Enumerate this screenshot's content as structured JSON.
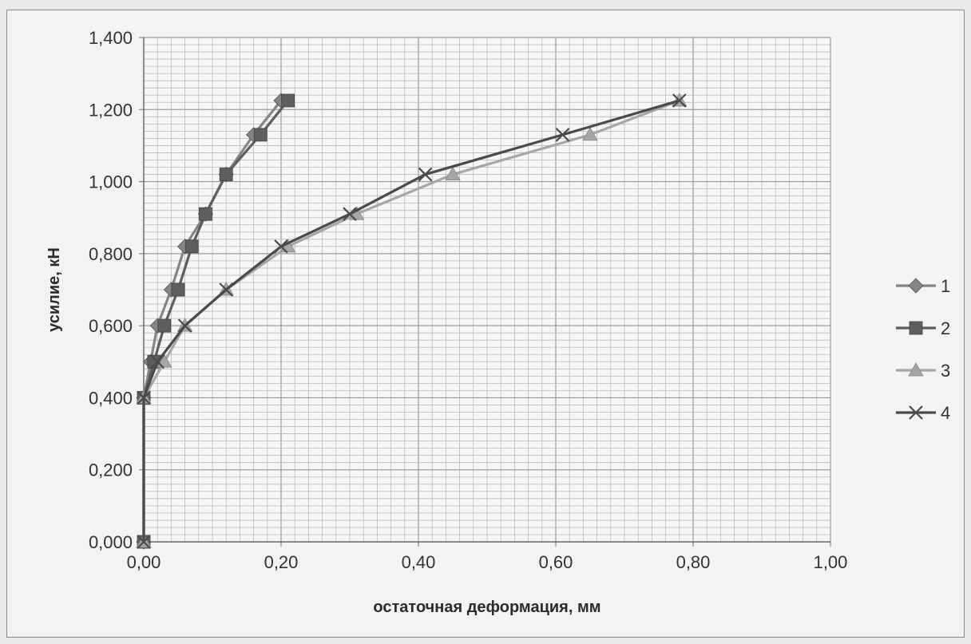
{
  "chart_data": {
    "type": "line",
    "xlabel": "остаточная деформация, мм",
    "ylabel": "усилие, кН",
    "xlim": [
      0,
      1.0
    ],
    "ylim": [
      0,
      1.4
    ],
    "grid": true,
    "legend_position": "right",
    "x_ticks": [
      "0,00",
      "0,20",
      "0,40",
      "0,60",
      "0,80",
      "1,00"
    ],
    "y_ticks": [
      "0,000",
      "0,200",
      "0,400",
      "0,600",
      "0,800",
      "1,000",
      "1,200",
      "1,400"
    ],
    "series": [
      {
        "name": "1",
        "color": "#858585",
        "marker": "diamond",
        "points": [
          [
            0,
            0
          ],
          [
            0,
            0.4
          ],
          [
            0.01,
            0.5
          ],
          [
            0.02,
            0.6
          ],
          [
            0.04,
            0.7
          ],
          [
            0.06,
            0.82
          ],
          [
            0.09,
            0.91
          ],
          [
            0.12,
            1.02
          ],
          [
            0.16,
            1.13
          ],
          [
            0.2,
            1.225
          ]
        ]
      },
      {
        "name": "2",
        "color": "#5e5e5e",
        "marker": "square",
        "points": [
          [
            0,
            0
          ],
          [
            0,
            0.4
          ],
          [
            0.015,
            0.5
          ],
          [
            0.03,
            0.6
          ],
          [
            0.05,
            0.7
          ],
          [
            0.07,
            0.82
          ],
          [
            0.09,
            0.91
          ],
          [
            0.12,
            1.02
          ],
          [
            0.17,
            1.13
          ],
          [
            0.21,
            1.225
          ]
        ]
      },
      {
        "name": "3",
        "color": "#a6a6a6",
        "marker": "triangle",
        "points": [
          [
            0,
            0
          ],
          [
            0,
            0.4
          ],
          [
            0.03,
            0.5
          ],
          [
            0.06,
            0.6
          ],
          [
            0.12,
            0.7
          ],
          [
            0.21,
            0.82
          ],
          [
            0.31,
            0.91
          ],
          [
            0.45,
            1.02
          ],
          [
            0.65,
            1.13
          ],
          [
            0.78,
            1.225
          ]
        ]
      },
      {
        "name": "4",
        "color": "#4a4a4a",
        "marker": "x",
        "points": [
          [
            0,
            0
          ],
          [
            0,
            0.4
          ],
          [
            0.02,
            0.5
          ],
          [
            0.06,
            0.6
          ],
          [
            0.12,
            0.7
          ],
          [
            0.2,
            0.82
          ],
          [
            0.3,
            0.91
          ],
          [
            0.41,
            1.02
          ],
          [
            0.61,
            1.13
          ],
          [
            0.78,
            1.225
          ]
        ]
      }
    ]
  }
}
